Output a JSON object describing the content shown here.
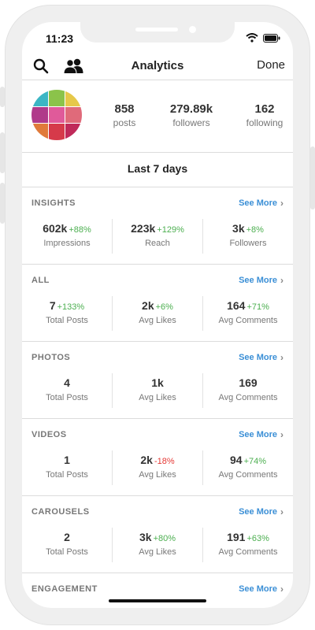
{
  "status_bar": {
    "time": "11:23"
  },
  "nav": {
    "title": "Analytics",
    "done_label": "Done",
    "search_icon": "search-icon",
    "people_icon": "people-icon"
  },
  "profile": {
    "avatar_colors": [
      "#3cb6c4",
      "#8bc34a",
      "#e6c84a",
      "#b03a8a",
      "#e05a9a",
      "#e06a7a",
      "#e07a3a",
      "#d63a4a",
      "#c02a5a"
    ],
    "posts": {
      "value": "858",
      "label": "posts"
    },
    "followers": {
      "value": "279.89k",
      "label": "followers"
    },
    "following": {
      "value": "162",
      "label": "following"
    }
  },
  "range_label": "Last 7 days",
  "see_more_label": "See More",
  "sections": [
    {
      "title": "INSIGHTS",
      "metrics": [
        {
          "value": "602k",
          "change": "+88%",
          "label": "Impressions"
        },
        {
          "value": "223k",
          "change": "+129%",
          "label": "Reach"
        },
        {
          "value": "3k",
          "change": "+8%",
          "label": "Followers"
        }
      ]
    },
    {
      "title": "ALL",
      "metrics": [
        {
          "value": "7",
          "change": "+133%",
          "label": "Total Posts"
        },
        {
          "value": "2k",
          "change": "+6%",
          "label": "Avg Likes"
        },
        {
          "value": "164",
          "change": "+71%",
          "label": "Avg Comments"
        }
      ]
    },
    {
      "title": "PHOTOS",
      "metrics": [
        {
          "value": "4",
          "change": "",
          "label": "Total Posts"
        },
        {
          "value": "1k",
          "change": "",
          "label": "Avg Likes"
        },
        {
          "value": "169",
          "change": "",
          "label": "Avg Comments"
        }
      ]
    },
    {
      "title": "VIDEOS",
      "metrics": [
        {
          "value": "1",
          "change": "",
          "label": "Total Posts"
        },
        {
          "value": "2k",
          "change": "-18%",
          "label": "Avg Likes"
        },
        {
          "value": "94",
          "change": "+74%",
          "label": "Avg Comments"
        }
      ]
    },
    {
      "title": "CAROUSELS",
      "metrics": [
        {
          "value": "2",
          "change": "",
          "label": "Total Posts"
        },
        {
          "value": "3k",
          "change": "+80%",
          "label": "Avg Likes"
        },
        {
          "value": "191",
          "change": "+63%",
          "label": "Avg Comments"
        }
      ]
    },
    {
      "title": "ENGAGEMENT",
      "metrics": []
    }
  ],
  "colors": {
    "accent": "#3b8fd6",
    "positive": "#4caf50",
    "negative": "#e53935"
  }
}
